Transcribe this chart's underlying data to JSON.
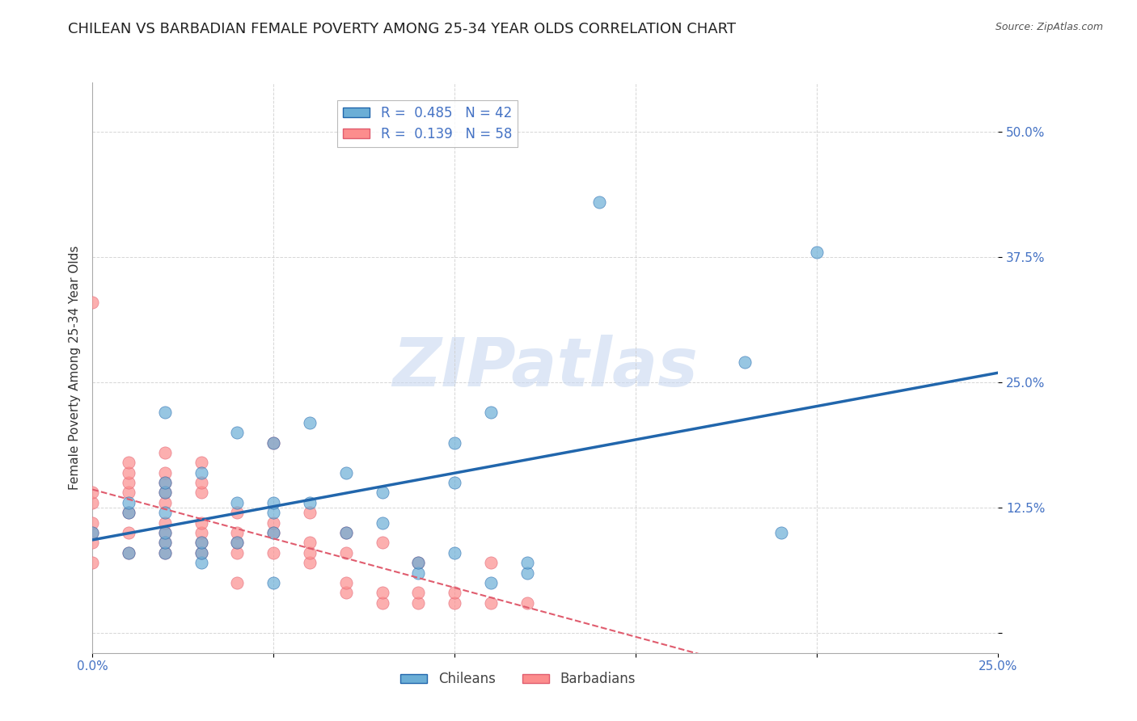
{
  "title": "CHILEAN VS BARBADIAN FEMALE POVERTY AMONG 25-34 YEAR OLDS CORRELATION CHART",
  "source": "Source: ZipAtlas.com",
  "xlabel": "",
  "ylabel": "Female Poverty Among 25-34 Year Olds",
  "xlim": [
    0.0,
    0.25
  ],
  "ylim": [
    -0.02,
    0.55
  ],
  "yticks": [
    0.0,
    0.125,
    0.25,
    0.375,
    0.5
  ],
  "ytick_labels": [
    "",
    "12.5%",
    "25.0%",
    "37.5%",
    "50.0%"
  ],
  "xticks": [
    0.0,
    0.05,
    0.1,
    0.15,
    0.2,
    0.25
  ],
  "xtick_labels": [
    "0.0%",
    "",
    "",
    "",
    "",
    "25.0%"
  ],
  "blue_R": 0.485,
  "blue_N": 42,
  "pink_R": 0.139,
  "pink_N": 58,
  "blue_color": "#6baed6",
  "pink_color": "#fc8d8d",
  "blue_line_color": "#2166ac",
  "pink_line_color": "#e05c6e",
  "axis_label_color": "#4472c4",
  "tick_color": "#4472c4",
  "grid_color": "#cccccc",
  "background_color": "#ffffff",
  "watermark": "ZIPatlas",
  "watermark_color": "#c8d8f0",
  "title_fontsize": 13,
  "axis_label_fontsize": 11,
  "tick_fontsize": 11,
  "legend_fontsize": 12,
  "chileans_x": [
    0.0,
    0.01,
    0.01,
    0.01,
    0.02,
    0.02,
    0.02,
    0.02,
    0.02,
    0.02,
    0.02,
    0.03,
    0.03,
    0.03,
    0.03,
    0.04,
    0.04,
    0.04,
    0.05,
    0.05,
    0.05,
    0.05,
    0.05,
    0.06,
    0.06,
    0.07,
    0.07,
    0.08,
    0.08,
    0.09,
    0.09,
    0.1,
    0.1,
    0.1,
    0.11,
    0.11,
    0.12,
    0.12,
    0.14,
    0.18,
    0.19,
    0.2
  ],
  "chileans_y": [
    0.1,
    0.08,
    0.12,
    0.13,
    0.08,
    0.09,
    0.1,
    0.12,
    0.14,
    0.15,
    0.22,
    0.07,
    0.08,
    0.09,
    0.16,
    0.09,
    0.13,
    0.2,
    0.05,
    0.1,
    0.12,
    0.13,
    0.19,
    0.13,
    0.21,
    0.1,
    0.16,
    0.11,
    0.14,
    0.06,
    0.07,
    0.08,
    0.15,
    0.19,
    0.05,
    0.22,
    0.06,
    0.07,
    0.43,
    0.27,
    0.1,
    0.38
  ],
  "barbadians_x": [
    0.0,
    0.0,
    0.0,
    0.0,
    0.0,
    0.0,
    0.0,
    0.01,
    0.01,
    0.01,
    0.01,
    0.01,
    0.01,
    0.01,
    0.02,
    0.02,
    0.02,
    0.02,
    0.02,
    0.02,
    0.02,
    0.02,
    0.02,
    0.03,
    0.03,
    0.03,
    0.03,
    0.03,
    0.03,
    0.03,
    0.04,
    0.04,
    0.04,
    0.04,
    0.04,
    0.05,
    0.05,
    0.05,
    0.05,
    0.06,
    0.06,
    0.06,
    0.06,
    0.07,
    0.07,
    0.07,
    0.07,
    0.08,
    0.08,
    0.08,
    0.09,
    0.09,
    0.09,
    0.1,
    0.1,
    0.11,
    0.11,
    0.12
  ],
  "barbadians_y": [
    0.07,
    0.09,
    0.1,
    0.11,
    0.13,
    0.14,
    0.33,
    0.08,
    0.1,
    0.12,
    0.14,
    0.15,
    0.16,
    0.17,
    0.08,
    0.09,
    0.1,
    0.11,
    0.13,
    0.14,
    0.15,
    0.16,
    0.18,
    0.08,
    0.09,
    0.1,
    0.11,
    0.14,
    0.15,
    0.17,
    0.05,
    0.08,
    0.09,
    0.1,
    0.12,
    0.08,
    0.1,
    0.11,
    0.19,
    0.07,
    0.08,
    0.09,
    0.12,
    0.04,
    0.05,
    0.08,
    0.1,
    0.03,
    0.04,
    0.09,
    0.03,
    0.04,
    0.07,
    0.03,
    0.04,
    0.03,
    0.07,
    0.03
  ]
}
